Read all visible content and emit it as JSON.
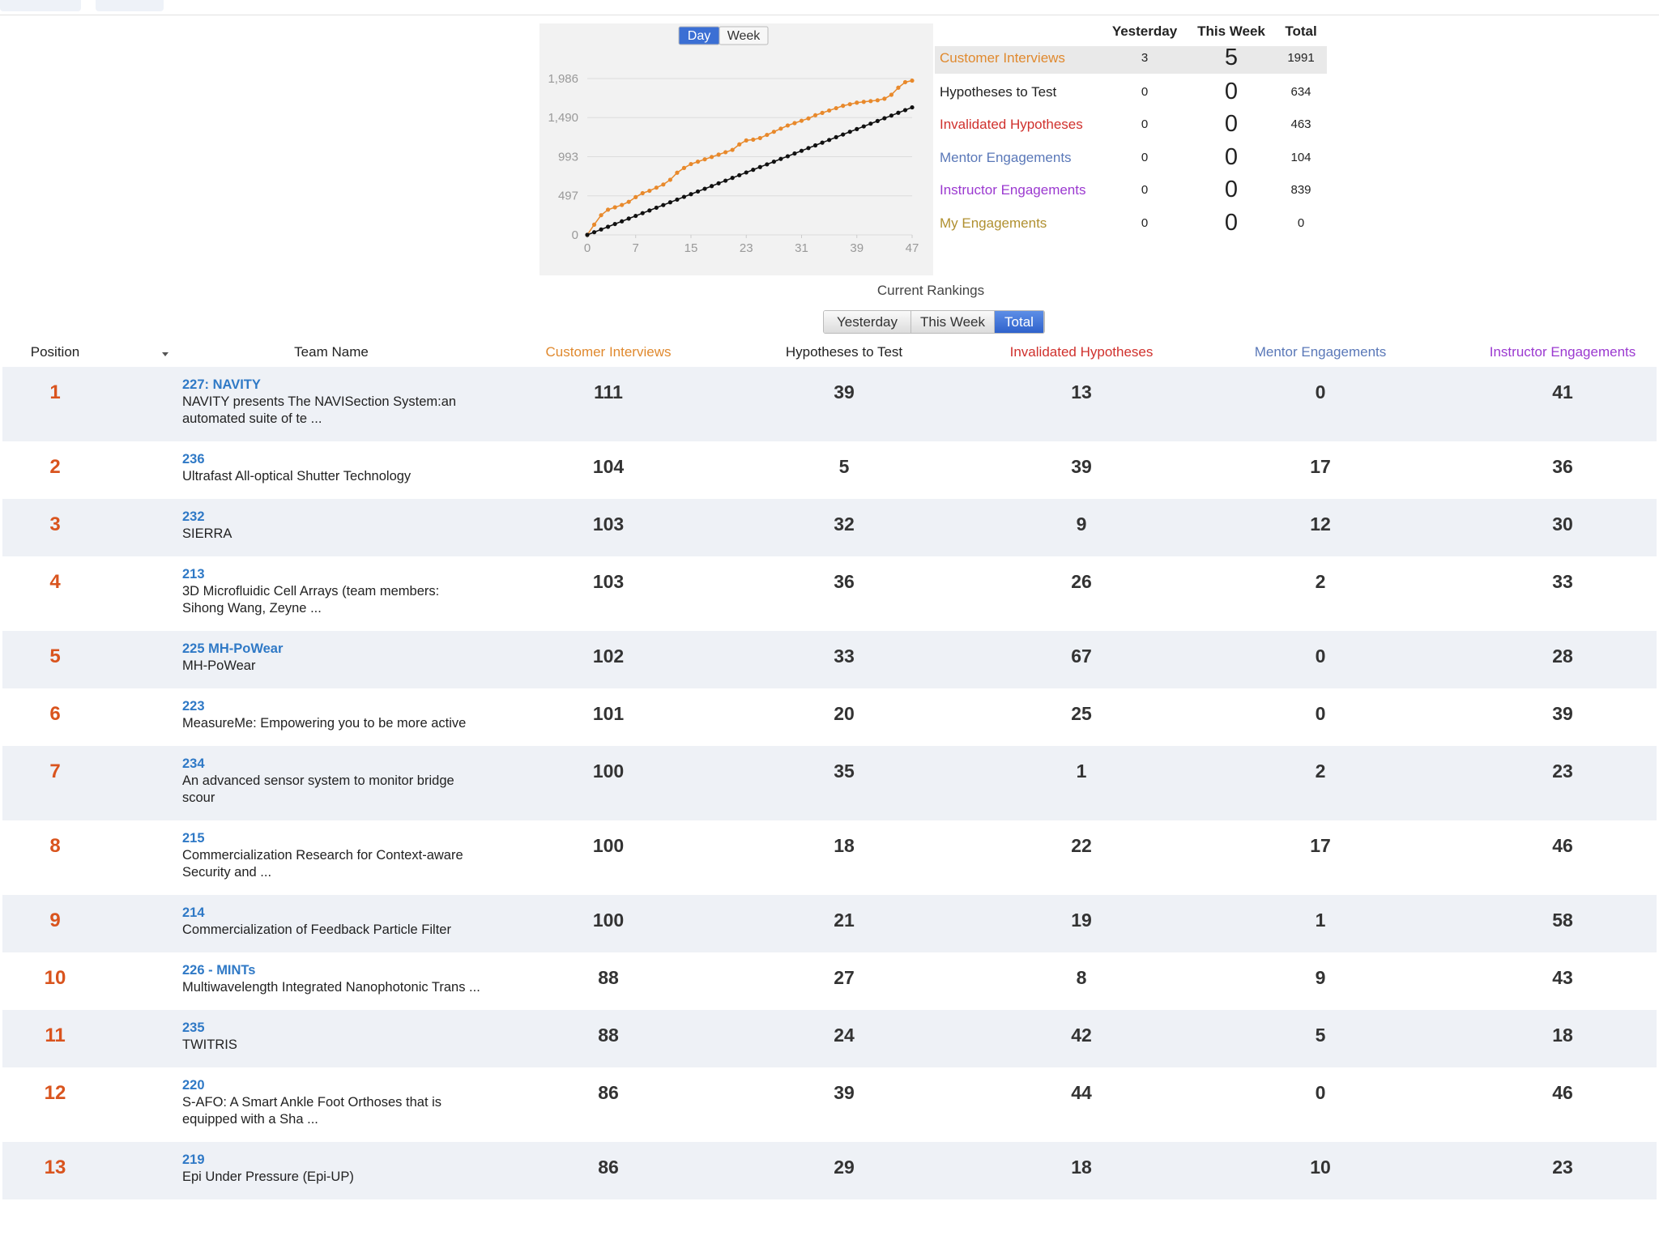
{
  "chart_data": {
    "type": "line",
    "buttons": [
      "Day",
      "Week"
    ],
    "active_button": 0,
    "x": [
      0,
      1,
      2,
      3,
      4,
      5,
      6,
      7,
      8,
      9,
      10,
      11,
      12,
      13,
      14,
      15,
      16,
      17,
      18,
      19,
      20,
      21,
      22,
      23,
      24,
      25,
      26,
      27,
      28,
      29,
      30,
      31,
      32,
      33,
      34,
      35,
      36,
      37,
      38,
      39,
      40,
      41,
      42,
      43,
      44,
      45,
      46,
      47
    ],
    "xlim": [
      0,
      47
    ],
    "xticks": [
      0,
      7,
      15,
      23,
      31,
      39,
      47
    ],
    "ylim": [
      0,
      1986
    ],
    "yticks": [
      0,
      497,
      993,
      {
        "value": 1490,
        "label": "1,490"
      },
      {
        "value": 1986,
        "label": "1,986"
      }
    ],
    "grid": true,
    "series": [
      {
        "color": "#e8892b",
        "values": [
          0,
          130,
          250,
          320,
          350,
          380,
          420,
          480,
          530,
          560,
          600,
          640,
          700,
          790,
          850,
          900,
          930,
          960,
          990,
          1020,
          1050,
          1080,
          1150,
          1200,
          1210,
          1230,
          1270,
          1310,
          1350,
          1390,
          1420,
          1450,
          1480,
          1520,
          1550,
          1580,
          1610,
          1640,
          1660,
          1680,
          1690,
          1700,
          1710,
          1730,
          1780,
          1870,
          1940,
          1960
        ]
      },
      {
        "color": "#111111",
        "values": [
          0,
          34,
          69,
          103,
          138,
          172,
          207,
          241,
          276,
          310,
          345,
          379,
          414,
          448,
          483,
          517,
          551,
          586,
          620,
          655,
          689,
          724,
          758,
          793,
          827,
          862,
          896,
          930,
          965,
          999,
          1034,
          1068,
          1103,
          1137,
          1172,
          1206,
          1241,
          1275,
          1310,
          1344,
          1378,
          1413,
          1447,
          1482,
          1516,
          1551,
          1585,
          1620
        ]
      }
    ]
  },
  "summary": {
    "headers": [
      "Yesterday",
      "This Week",
      "Total"
    ],
    "rows": [
      {
        "name": "Customer Interviews",
        "color": "#e0892e",
        "yesterday": 3,
        "this_week": 5,
        "total": 1991
      },
      {
        "name": "Hypotheses to Test",
        "color": "#222222",
        "yesterday": 0,
        "this_week": 0,
        "total": 634
      },
      {
        "name": "Invalidated Hypotheses",
        "color": "#d0312d",
        "yesterday": 0,
        "this_week": 0,
        "total": 463
      },
      {
        "name": "Mentor Engagements",
        "color": "#5a78b8",
        "yesterday": 0,
        "this_week": 0,
        "total": 104
      },
      {
        "name": "Instructor Engagements",
        "color": "#9b39d0",
        "yesterday": 0,
        "this_week": 0,
        "total": 839
      },
      {
        "name": "My Engagements",
        "color": "#b09030",
        "yesterday": 0,
        "this_week": 0,
        "total": 0
      }
    ]
  },
  "rankings": {
    "title": "Current Rankings",
    "tabs": [
      "Yesterday",
      "This Week",
      "Total"
    ],
    "active_tab": 2,
    "columns": [
      {
        "label": "Position",
        "color": "#222222"
      },
      {
        "label": "Team Name",
        "color": "#222222"
      },
      {
        "label": "Customer Interviews",
        "color": "#e0892e"
      },
      {
        "label": "Hypotheses to Test",
        "color": "#222222"
      },
      {
        "label": "Invalidated Hypotheses",
        "color": "#d0312d"
      },
      {
        "label": "Mentor Engagements",
        "color": "#5a78b8"
      },
      {
        "label": "Instructor Engagements",
        "color": "#9b39d0"
      }
    ],
    "rows": [
      {
        "position": 1,
        "team_id": "227: NAVITY",
        "description": "NAVITY presents The NAVISection System:an automated suite of te ...",
        "values": [
          111,
          39,
          13,
          0,
          41
        ]
      },
      {
        "position": 2,
        "team_id": "236",
        "description": "Ultrafast All-optical Shutter Technology",
        "values": [
          104,
          5,
          39,
          17,
          36
        ]
      },
      {
        "position": 3,
        "team_id": "232",
        "description": "SIERRA",
        "values": [
          103,
          32,
          9,
          12,
          30
        ]
      },
      {
        "position": 4,
        "team_id": "213",
        "description": "3D Microfluidic Cell Arrays (team members: Sihong Wang, Zeyne ...",
        "values": [
          103,
          36,
          26,
          2,
          33
        ]
      },
      {
        "position": 5,
        "team_id": "225 MH-PoWear",
        "description": "MH-PoWear",
        "values": [
          102,
          33,
          67,
          0,
          28
        ]
      },
      {
        "position": 6,
        "team_id": "223",
        "description": "MeasureMe: Empowering you to be more active",
        "values": [
          101,
          20,
          25,
          0,
          39
        ]
      },
      {
        "position": 7,
        "team_id": "234",
        "description": "An advanced sensor system to monitor bridge scour",
        "values": [
          100,
          35,
          1,
          2,
          23
        ]
      },
      {
        "position": 8,
        "team_id": "215",
        "description": "Commercialization Research for Context-aware Security and ...",
        "values": [
          100,
          18,
          22,
          17,
          46
        ]
      },
      {
        "position": 9,
        "team_id": "214",
        "description": "Commercialization of Feedback Particle Filter",
        "values": [
          100,
          21,
          19,
          1,
          58
        ]
      },
      {
        "position": 10,
        "team_id": "226 - MINTs",
        "description": "Multiwavelength Integrated Nanophotonic Trans ...",
        "values": [
          88,
          27,
          8,
          9,
          43
        ]
      },
      {
        "position": 11,
        "team_id": "235",
        "description": "TWITRIS",
        "values": [
          88,
          24,
          42,
          5,
          18
        ]
      },
      {
        "position": 12,
        "team_id": "220",
        "description": "S-AFO: A Smart Ankle Foot Orthoses that is equipped with a Sha ...",
        "values": [
          86,
          39,
          44,
          0,
          46
        ]
      },
      {
        "position": 13,
        "team_id": "219",
        "description": "Epi Under Pressure (Epi-UP)",
        "values": [
          86,
          29,
          18,
          10,
          23
        ]
      }
    ]
  }
}
